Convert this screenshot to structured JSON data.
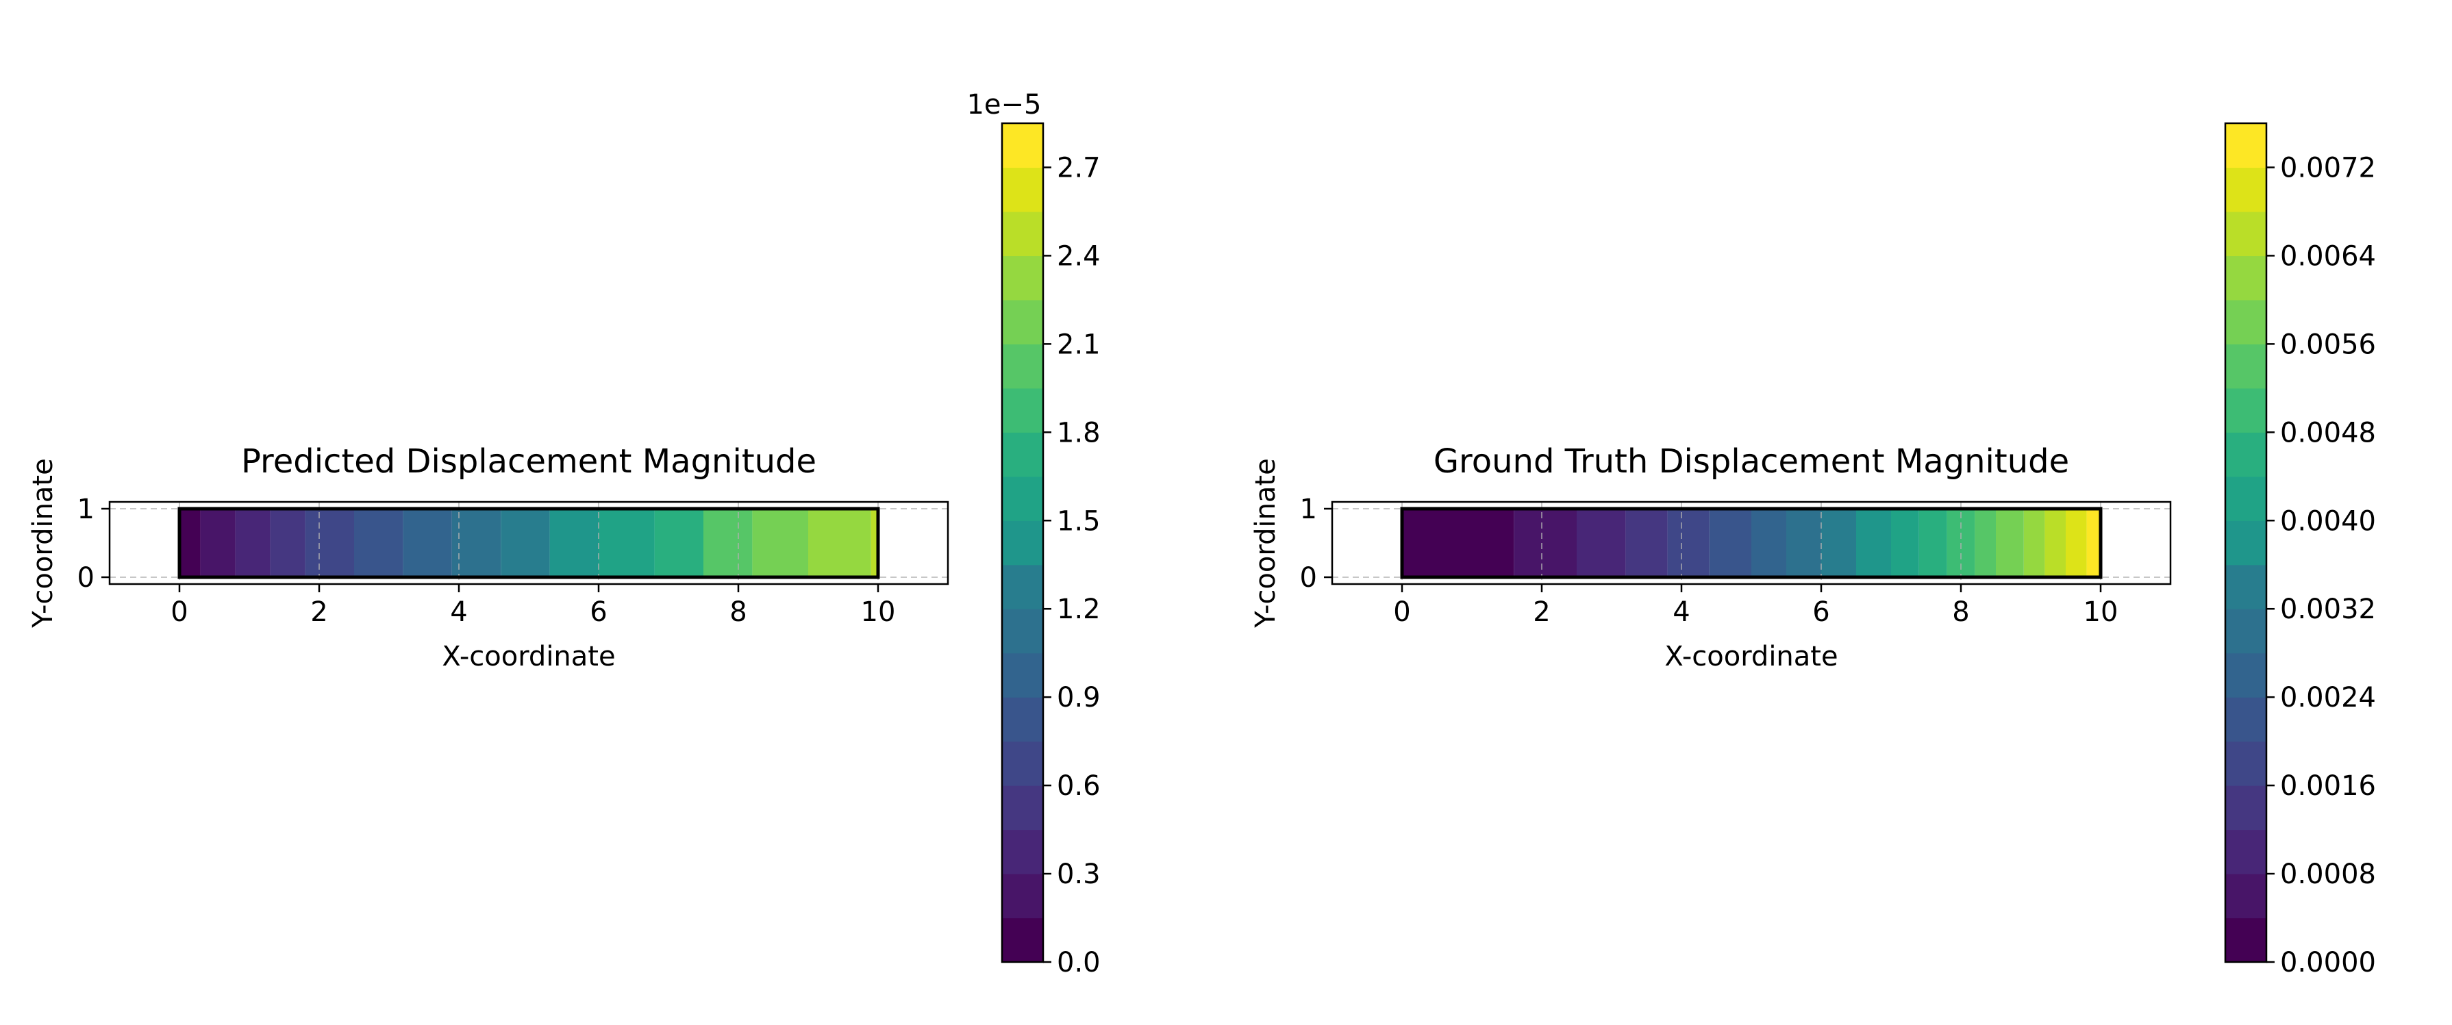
{
  "colors": {
    "viridis": [
      "#440154",
      "#481568",
      "#482677",
      "#453781",
      "#3f4788",
      "#39558c",
      "#32648e",
      "#2d718e",
      "#287d8e",
      "#238a8d",
      "#1f968b",
      "#20a386",
      "#29af7f",
      "#3dbc74",
      "#56c667",
      "#75d054",
      "#95d840",
      "#bade28",
      "#dde318",
      "#fde725"
    ],
    "frame": "#000000",
    "grid": "#b0b0b0"
  },
  "chart_data": [
    {
      "type": "heatmap",
      "title": "Predicted Displacement Magnitude",
      "xlabel": "X-coordinate",
      "ylabel": "Y-coordinate",
      "xlim": [
        -1,
        11
      ],
      "ylim": [
        -0.1,
        1.1
      ],
      "domain": {
        "x": [
          0,
          10
        ],
        "y": [
          0,
          1
        ]
      },
      "xticks": [
        0,
        2,
        4,
        6,
        8,
        10
      ],
      "yticks": [
        0,
        1
      ],
      "grid": true,
      "contour_bands": [
        {
          "x0": 0,
          "x1": 0.3,
          "band": 0
        },
        {
          "x0": 0.3,
          "x1": 0.8,
          "band": 1
        },
        {
          "x0": 0.8,
          "x1": 1.3,
          "band": 2
        },
        {
          "x0": 1.3,
          "x1": 1.8,
          "band": 3
        },
        {
          "x0": 1.8,
          "x1": 2.5,
          "band": 4
        },
        {
          "x0": 2.5,
          "x1": 3.2,
          "band": 5
        },
        {
          "x0": 3.2,
          "x1": 3.9,
          "band": 6
        },
        {
          "x0": 3.9,
          "x1": 4.6,
          "band": 7
        },
        {
          "x0": 4.6,
          "x1": 5.3,
          "band": 8
        },
        {
          "x0": 5.3,
          "x1": 6.0,
          "band": 9
        },
        {
          "x0": 6.0,
          "x1": 6.8,
          "band": 10
        },
        {
          "x0": 6.8,
          "x1": 7.5,
          "band": 11
        },
        {
          "x0": 7.5,
          "x1": 8.2,
          "band": 13
        },
        {
          "x0": 8.2,
          "x1": 9.0,
          "band": 14
        },
        {
          "x0": 9.0,
          "x1": 9.9,
          "band": 15
        },
        {
          "x0": 9.9,
          "x1": 10,
          "band": 16
        }
      ],
      "colorbar": {
        "min": 0,
        "max": 2.85,
        "levels": 19,
        "ticks": [
          0.0,
          0.3,
          0.6,
          0.9,
          1.2,
          1.5,
          1.8,
          2.1,
          2.4,
          2.7
        ],
        "tick_labels": [
          "0.0",
          "0.3",
          "0.6",
          "0.9",
          "1.2",
          "1.5",
          "1.8",
          "2.1",
          "2.4",
          "2.7"
        ],
        "offset_label": "1e−5"
      }
    },
    {
      "type": "heatmap",
      "title": "Ground Truth Displacement Magnitude",
      "xlabel": "X-coordinate",
      "ylabel": "Y-coordinate",
      "xlim": [
        -1,
        11
      ],
      "ylim": [
        -0.1,
        1.1
      ],
      "domain": {
        "x": [
          0,
          10
        ],
        "y": [
          0,
          1
        ]
      },
      "xticks": [
        0,
        2,
        4,
        6,
        8,
        10
      ],
      "yticks": [
        0,
        1
      ],
      "grid": true,
      "contour_bands": [
        {
          "x0": 0,
          "x1": 1.6,
          "band": 0
        },
        {
          "x0": 1.6,
          "x1": 2.5,
          "band": 1
        },
        {
          "x0": 2.5,
          "x1": 3.2,
          "band": 2
        },
        {
          "x0": 3.2,
          "x1": 3.8,
          "band": 3
        },
        {
          "x0": 3.8,
          "x1": 4.4,
          "band": 4
        },
        {
          "x0": 4.4,
          "x1": 5.0,
          "band": 5
        },
        {
          "x0": 5.0,
          "x1": 5.5,
          "band": 6
        },
        {
          "x0": 5.5,
          "x1": 6.0,
          "band": 7
        },
        {
          "x0": 6.0,
          "x1": 6.5,
          "band": 8
        },
        {
          "x0": 6.5,
          "x1": 7.0,
          "band": 9
        },
        {
          "x0": 7.0,
          "x1": 7.4,
          "band": 10
        },
        {
          "x0": 7.4,
          "x1": 7.8,
          "band": 11
        },
        {
          "x0": 7.8,
          "x1": 8.2,
          "band": 12
        },
        {
          "x0": 8.2,
          "x1": 8.5,
          "band": 13
        },
        {
          "x0": 8.5,
          "x1": 8.9,
          "band": 14
        },
        {
          "x0": 8.9,
          "x1": 9.2,
          "band": 15
        },
        {
          "x0": 9.2,
          "x1": 9.5,
          "band": 16
        },
        {
          "x0": 9.5,
          "x1": 9.8,
          "band": 17
        },
        {
          "x0": 9.8,
          "x1": 10,
          "band": 18
        }
      ],
      "colorbar": {
        "min": 0,
        "max": 0.0076,
        "levels": 19,
        "ticks": [
          0.0,
          0.0008,
          0.0016,
          0.0024,
          0.0032,
          0.004,
          0.0048,
          0.0056,
          0.0064,
          0.0072
        ],
        "tick_labels": [
          "0.0000",
          "0.0008",
          "0.0016",
          "0.0024",
          "0.0032",
          "0.0040",
          "0.0048",
          "0.0056",
          "0.0064",
          "0.0072"
        ],
        "offset_label": ""
      }
    }
  ]
}
